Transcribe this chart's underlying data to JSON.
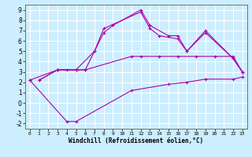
{
  "xlabel": "Windchill (Refroidissement éolien,°C)",
  "xlim": [
    -0.5,
    23.5
  ],
  "ylim": [
    -2.5,
    9.5
  ],
  "xticks": [
    0,
    1,
    2,
    3,
    4,
    5,
    6,
    7,
    8,
    9,
    10,
    11,
    12,
    13,
    14,
    15,
    16,
    17,
    18,
    19,
    20,
    21,
    22,
    23
  ],
  "yticks": [
    -2,
    -1,
    0,
    1,
    2,
    3,
    4,
    5,
    6,
    7,
    8,
    9
  ],
  "bg_color": "#cceeff",
  "grid_color": "#ffffff",
  "line_color": "#aa00aa",
  "lines": [
    {
      "x": [
        1,
        3,
        4,
        6,
        7,
        8,
        12,
        13,
        14,
        16,
        17,
        19,
        22,
        23
      ],
      "y": [
        2.2,
        3.2,
        3.2,
        3.2,
        5.0,
        7.2,
        8.8,
        7.2,
        6.5,
        6.2,
        5.0,
        7.0,
        4.3,
        3.0
      ]
    },
    {
      "x": [
        1,
        3,
        5,
        7,
        8,
        9,
        12,
        13,
        15,
        16,
        17,
        19,
        22,
        23
      ],
      "y": [
        2.2,
        3.2,
        3.2,
        5.0,
        6.8,
        7.5,
        9.0,
        7.5,
        6.5,
        6.5,
        5.0,
        6.8,
        4.3,
        3.0
      ]
    },
    {
      "x": [
        0,
        3,
        5,
        6,
        11,
        12,
        14,
        16,
        18,
        20,
        22,
        23
      ],
      "y": [
        2.2,
        3.2,
        3.2,
        3.2,
        4.5,
        4.5,
        4.5,
        4.5,
        4.5,
        4.5,
        4.5,
        3.0
      ]
    },
    {
      "x": [
        0,
        4,
        5,
        11,
        15,
        17,
        19,
        22,
        23
      ],
      "y": [
        2.2,
        -1.8,
        -1.8,
        1.2,
        1.8,
        2.0,
        2.3,
        2.3,
        2.5
      ]
    }
  ]
}
